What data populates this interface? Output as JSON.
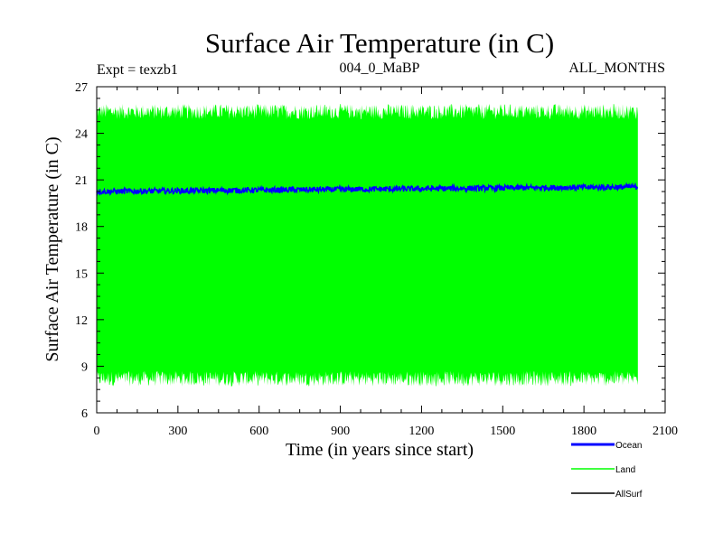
{
  "chart_data": {
    "type": "line",
    "title": "Surface Air Temperature (in C)",
    "subtitle_left": "Expt = texzb1",
    "subtitle_center": "004_0_MaBP",
    "subtitle_right": "ALL_MONTHS",
    "xlabel": "Time (in years since start)",
    "ylabel": "Surface Air Temperature (in C)",
    "xlim": [
      0,
      2100
    ],
    "ylim": [
      6,
      27
    ],
    "x_ticks": [
      "0",
      "300",
      "600",
      "900",
      "1200",
      "1500",
      "1800",
      "2100"
    ],
    "y_ticks": [
      "6",
      "9",
      "12",
      "15",
      "18",
      "21",
      "24",
      "27"
    ],
    "x_tick_values": [
      0,
      300,
      600,
      900,
      1200,
      1500,
      1800,
      2100
    ],
    "y_tick_values": [
      6,
      9,
      12,
      15,
      18,
      21,
      24,
      27
    ],
    "x_range": [
      0,
      2000
    ],
    "series": [
      {
        "name": "Land",
        "color": "#00ff00",
        "style": "band",
        "low": 8.2,
        "high": 25.4,
        "noise": 0.5
      },
      {
        "name": "Ocean",
        "color": "#0000ff",
        "style": "line",
        "start": 20.25,
        "end": 20.55,
        "noise": 0.18
      },
      {
        "name": "AllSurf",
        "color": "#000000",
        "style": "legend-only"
      }
    ]
  }
}
